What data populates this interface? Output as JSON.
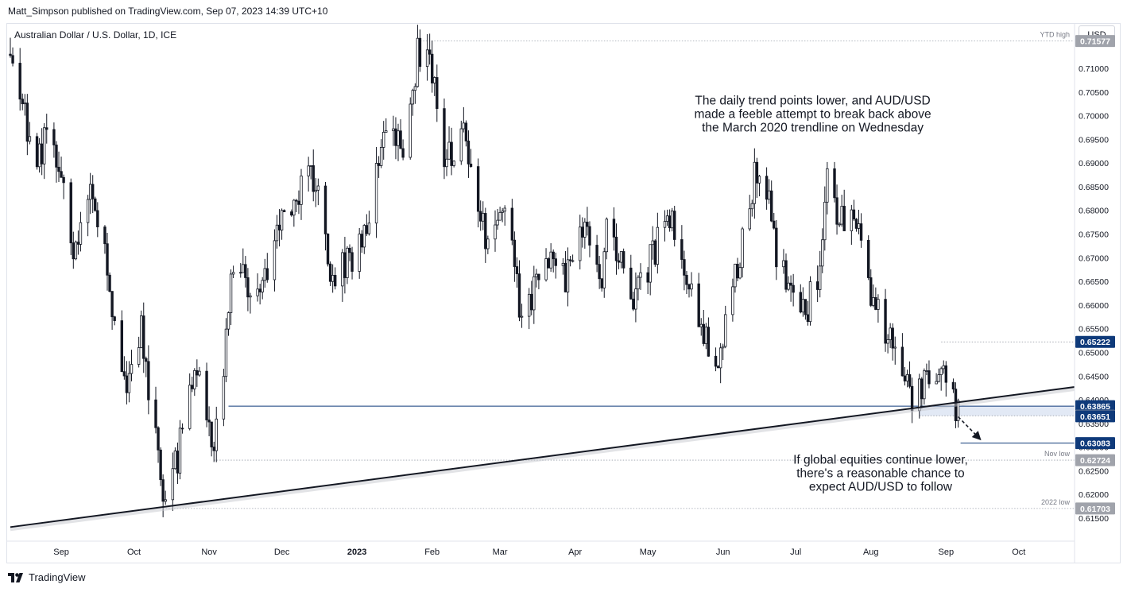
{
  "header": {
    "publisher": "Matt_Simpson published on TradingView.com, Sep 07, 2023 14:39 UTC+10",
    "symbol": "Australian Dollar / U.S. Dollar, 1D, ICE",
    "currency": "USD"
  },
  "footer": {
    "brand": "TradingView"
  },
  "colors": {
    "up": "#ffffff",
    "down": "#131722",
    "tag_blue": "#0f3a7a",
    "tag_grey": "#a0a3ab",
    "trendline": "#131722"
  },
  "chart_data": {
    "type": "candlestick",
    "y_range": [
      0.6103,
      0.7194
    ],
    "y_ticks": [
      "0.71000",
      "0.70500",
      "0.70000",
      "0.69500",
      "0.69000",
      "0.68500",
      "0.68000",
      "0.67500",
      "0.67000",
      "0.66500",
      "0.66000",
      "0.65500",
      "0.65000",
      "0.64500",
      "0.64000",
      "0.63500",
      "0.63000",
      "0.62500",
      "0.62000",
      "0.61500"
    ],
    "x_ticks": [
      {
        "label": "Sep",
        "date": "2022-09-01"
      },
      {
        "label": "Oct",
        "date": "2022-10-01"
      },
      {
        "label": "Nov",
        "date": "2022-11-01"
      },
      {
        "label": "Dec",
        "date": "2022-12-01"
      },
      {
        "label": "2023",
        "date": "2023-01-01"
      },
      {
        "label": "Feb",
        "date": "2023-02-01"
      },
      {
        "label": "Mar",
        "date": "2023-03-01"
      },
      {
        "label": "Apr",
        "date": "2023-04-01"
      },
      {
        "label": "May",
        "date": "2023-05-01"
      },
      {
        "label": "Jun",
        "date": "2023-06-01"
      },
      {
        "label": "Jul",
        "date": "2023-07-01"
      },
      {
        "label": "Aug",
        "date": "2023-08-01"
      },
      {
        "label": "Sep",
        "date": "2023-09-01"
      },
      {
        "label": "Oct",
        "date": "2023-10-01"
      }
    ],
    "price_path": [
      {
        "date": "2022-08-11",
        "close": 0.713
      },
      {
        "date": "2022-08-22",
        "close": 0.688
      },
      {
        "date": "2022-08-26",
        "close": 0.698
      },
      {
        "date": "2022-09-07",
        "close": 0.671
      },
      {
        "date": "2022-09-13",
        "close": 0.688
      },
      {
        "date": "2022-09-21",
        "close": 0.663
      },
      {
        "date": "2022-09-28",
        "close": 0.64
      },
      {
        "date": "2022-10-04",
        "close": 0.655
      },
      {
        "date": "2022-10-13",
        "close": 0.619
      },
      {
        "date": "2022-10-19",
        "close": 0.628
      },
      {
        "date": "2022-10-26",
        "close": 0.648
      },
      {
        "date": "2022-11-03",
        "close": 0.628
      },
      {
        "date": "2022-11-11",
        "close": 0.669
      },
      {
        "date": "2022-11-21",
        "close": 0.663
      },
      {
        "date": "2022-12-05",
        "close": 0.682
      },
      {
        "date": "2022-12-14",
        "close": 0.687
      },
      {
        "date": "2022-12-22",
        "close": 0.665
      },
      {
        "date": "2023-01-03",
        "close": 0.673
      },
      {
        "date": "2023-01-13",
        "close": 0.699
      },
      {
        "date": "2023-01-20",
        "close": 0.692
      },
      {
        "date": "2023-01-26",
        "close": 0.713
      },
      {
        "date": "2023-02-02",
        "close": 0.71
      },
      {
        "date": "2023-02-06",
        "close": 0.688
      },
      {
        "date": "2023-02-14",
        "close": 0.7
      },
      {
        "date": "2023-02-17",
        "close": 0.687
      },
      {
        "date": "2023-02-24",
        "close": 0.673
      },
      {
        "date": "2023-03-03",
        "close": 0.679
      },
      {
        "date": "2023-03-10",
        "close": 0.658
      },
      {
        "date": "2023-03-21",
        "close": 0.67
      },
      {
        "date": "2023-03-28",
        "close": 0.666
      },
      {
        "date": "2023-04-04",
        "close": 0.678
      },
      {
        "date": "2023-04-12",
        "close": 0.666
      },
      {
        "date": "2023-04-14",
        "close": 0.678
      },
      {
        "date": "2023-04-25",
        "close": 0.66
      },
      {
        "date": "2023-05-04",
        "close": 0.672
      },
      {
        "date": "2023-05-10",
        "close": 0.678
      },
      {
        "date": "2023-05-19",
        "close": 0.664
      },
      {
        "date": "2023-05-25",
        "close": 0.652
      },
      {
        "date": "2023-05-31",
        "close": 0.65
      },
      {
        "date": "2023-06-07",
        "close": 0.669
      },
      {
        "date": "2023-06-15",
        "close": 0.689
      },
      {
        "date": "2023-06-19",
        "close": 0.686
      },
      {
        "date": "2023-06-23",
        "close": 0.67
      },
      {
        "date": "2023-06-29",
        "close": 0.663
      },
      {
        "date": "2023-07-06",
        "close": 0.66
      },
      {
        "date": "2023-07-11",
        "close": 0.668
      },
      {
        "date": "2023-07-14",
        "close": 0.688
      },
      {
        "date": "2023-07-19",
        "close": 0.678
      },
      {
        "date": "2023-07-26",
        "close": 0.679
      },
      {
        "date": "2023-08-02",
        "close": 0.66
      },
      {
        "date": "2023-08-07",
        "close": 0.655
      },
      {
        "date": "2023-08-11",
        "close": 0.65
      },
      {
        "date": "2023-08-17",
        "close": 0.64
      },
      {
        "date": "2023-08-22",
        "close": 0.643
      },
      {
        "date": "2023-08-30",
        "close": 0.648
      },
      {
        "date": "2023-09-01",
        "close": 0.644
      },
      {
        "date": "2023-09-05",
        "close": 0.637
      },
      {
        "date": "2023-09-06",
        "close": 0.637
      }
    ],
    "trendline": {
      "label": "March 2020 trendline",
      "from": {
        "date": "2022-08-11",
        "price": 0.6131
      },
      "to": {
        "date": "2023-10-24",
        "price": 0.6427
      }
    },
    "horizontal_levels": [
      {
        "price": 0.71577,
        "label": "YTD high",
        "tag": "0.71577",
        "style": "grey",
        "line": "dotted",
        "from": "2023-01-26"
      },
      {
        "price": 0.65222,
        "label": "",
        "tag": "0.65222",
        "style": "blue",
        "line": "dotted",
        "from": "2023-08-30"
      },
      {
        "price": 0.63865,
        "label": "",
        "tag": "0.63865",
        "style": "blue",
        "line": "solid",
        "from": "2022-11-09"
      },
      {
        "price": 0.63662,
        "label": "",
        "tag": "0.63662",
        "style": "grey",
        "line": "dotted",
        "from": "2023-08-21"
      },
      {
        "price": 0.63651,
        "label": "",
        "tag": "0.63651",
        "style": "blue",
        "line": "none",
        "from": "2023-09-06"
      },
      {
        "price": 0.63083,
        "label": "",
        "tag": "0.63083",
        "style": "blue",
        "line": "solid",
        "from": "2023-09-07"
      },
      {
        "price": 0.62724,
        "label": "Nov low",
        "tag": "0.62724",
        "style": "grey",
        "line": "dotted",
        "from": "2022-11-03"
      },
      {
        "price": 0.61703,
        "label": "2022 low",
        "tag": "0.61703",
        "style": "grey",
        "line": "dotted",
        "from": "2022-10-13"
      }
    ],
    "shaded_zone": {
      "from": "2023-08-21",
      "to": "2023-09-30",
      "top": 0.63865,
      "bottom": 0.63662
    },
    "projection_arrow": {
      "from": {
        "date": "2023-09-06",
        "price": 0.6364
      },
      "to": {
        "date": "2023-09-15",
        "price": 0.6317
      }
    },
    "annotations": [
      {
        "lines": [
          "The daily trend points lower, and AUD/USD",
          "made a feeble attempt to break back above",
          "the March 2020 trendline on Wednesday"
        ],
        "anchor_date": "2023-07-08",
        "anchor_price": 0.7024
      },
      {
        "lines": [
          "If global equities continue lower,",
          "there's a reasonable chance to",
          "expect AUD/USD to follow"
        ],
        "anchor_date": "2023-08-05",
        "anchor_price": 0.6265
      }
    ]
  }
}
